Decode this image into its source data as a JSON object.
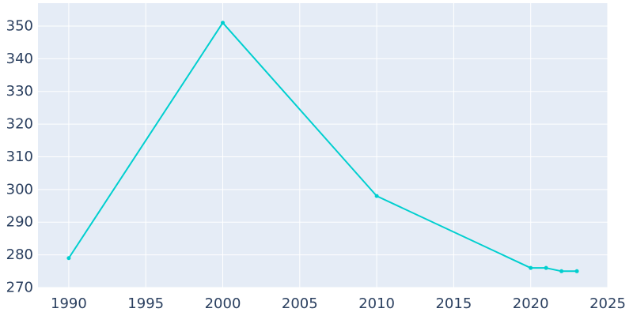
{
  "chart_data": {
    "type": "line",
    "title": "",
    "xlabel": "",
    "ylabel": "",
    "x": [
      1990,
      2000,
      2010,
      2020,
      2021,
      2022,
      2023
    ],
    "series": [
      {
        "values": [
          279,
          351,
          298,
          276,
          276,
          275,
          275
        ]
      }
    ],
    "xlim": [
      1988,
      2025
    ],
    "ylim": [
      270,
      357
    ],
    "xticks": [
      1990,
      1995,
      2000,
      2005,
      2010,
      2015,
      2020,
      2025
    ],
    "yticks": [
      270,
      280,
      290,
      300,
      310,
      320,
      330,
      340,
      350
    ],
    "xtick_labels": [
      "1990",
      "1995",
      "2000",
      "2005",
      "2010",
      "2015",
      "2020",
      "2025"
    ],
    "ytick_labels": [
      "270",
      "280",
      "290",
      "300",
      "310",
      "320",
      "330",
      "340",
      "350"
    ],
    "grid": true,
    "legend": "none",
    "colors": {
      "plot_background": "#e5ecf6",
      "gridline": "#ffffff",
      "line": "#00cfcf",
      "tick_text": "#2a3f5f"
    }
  }
}
